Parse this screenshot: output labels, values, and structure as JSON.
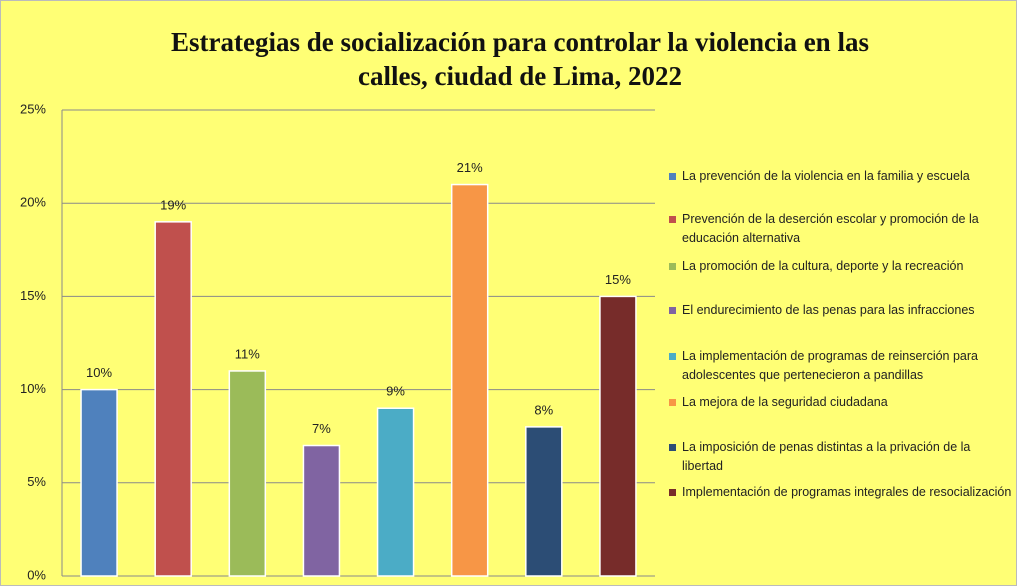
{
  "chart_data": {
    "type": "bar",
    "title": [
      "Estrategias de socialización para controlar la violencia en las",
      "calles, ciudad de Lima, 2022"
    ],
    "ylim": [
      0,
      25
    ],
    "yticks": [
      {
        "value": 0,
        "label": "0%"
      },
      {
        "value": 5,
        "label": "5%"
      },
      {
        "value": 10,
        "label": "10%"
      },
      {
        "value": 15,
        "label": "15%"
      },
      {
        "value": 20,
        "label": "20%"
      },
      {
        "value": 25,
        "label": "25%"
      }
    ],
    "grid": true,
    "legend": "right",
    "series": [
      {
        "name": "La prevención de la violencia en la familia y escuela",
        "color": "#4f81bd",
        "values": [
          10
        ],
        "value_labels": [
          "10%"
        ]
      },
      {
        "name": "Prevención de la deserción escolar y promoción de la educación alternativa",
        "color": "#c0504d",
        "values": [
          19
        ],
        "value_labels": [
          "19%"
        ]
      },
      {
        "name": "La promoción de la cultura, deporte y la recreación",
        "color": "#9bbb59",
        "values": [
          11
        ],
        "value_labels": [
          "11%"
        ]
      },
      {
        "name": "El endurecimiento de las penas para las infracciones",
        "color": "#8064a2",
        "values": [
          7
        ],
        "value_labels": [
          "7%"
        ]
      },
      {
        "name": "La implementación de programas de reinserción para adolescentes que pertenecieron a pandillas",
        "color": "#4bacc6",
        "values": [
          9
        ],
        "value_labels": [
          "9%"
        ]
      },
      {
        "name": "La mejora de la seguridad ciudadana",
        "color": "#f79646",
        "values": [
          21
        ],
        "value_labels": [
          "21%"
        ]
      },
      {
        "name": "La imposición de penas distintas a la privación de la libertad",
        "color": "#2c4d75",
        "values": [
          8
        ],
        "value_labels": [
          "8%"
        ]
      },
      {
        "name": "Implementación de programas integrales de resocialización",
        "color": "#772c2a",
        "values": [
          15
        ],
        "value_labels": [
          "15%"
        ]
      }
    ]
  }
}
